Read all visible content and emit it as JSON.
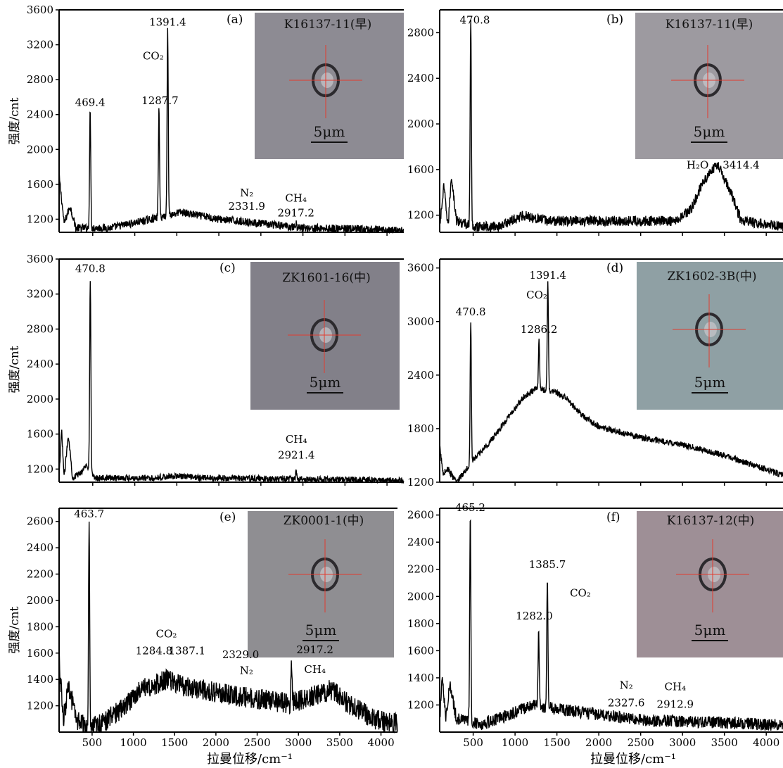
{
  "figure": {
    "ylabel": "强度/cnt",
    "xlabel": "拉曼位移/cm⁻¹",
    "scale_bar": "5μm"
  },
  "chart_data": [
    {
      "id": "a",
      "type": "line",
      "panel_label": "(a)",
      "sample": "K16137-11(早)",
      "xlim": [
        100,
        4200
      ],
      "ylim": [
        1050,
        3600
      ],
      "yticks": [
        1200,
        1600,
        2000,
        2400,
        2800,
        3200,
        3600
      ],
      "xticks": [],
      "xticklabels": [],
      "peaks": [
        [
          469.4,
          2430
        ],
        [
          1287.7,
          2450
        ],
        [
          1391.4,
          3350
        ],
        [
          2331.9,
          1180
        ],
        [
          2917.2,
          1150
        ]
      ],
      "baseline": [
        [
          100,
          1700
        ],
        [
          160,
          1150
        ],
        [
          230,
          1350
        ],
        [
          300,
          1100
        ],
        [
          700,
          1100
        ],
        [
          1100,
          1180
        ],
        [
          1550,
          1280
        ],
        [
          2000,
          1200
        ],
        [
          2500,
          1150
        ],
        [
          3000,
          1100
        ],
        [
          3500,
          1090
        ],
        [
          4200,
          1070
        ]
      ],
      "noise": 45,
      "annotations": [
        {
          "text": "469.4",
          "x": 469.4,
          "y": 2500
        },
        {
          "text": "1287.7",
          "x": 1300,
          "y": 2520
        },
        {
          "text": "1391.4",
          "x": 1391.4,
          "y": 3420
        },
        {
          "text": "CO₂",
          "x": 1220,
          "y": 3030
        },
        {
          "text": "N₂",
          "x": 2331.9,
          "y": 1460
        },
        {
          "text": "2331.9",
          "x": 2331.9,
          "y": 1310
        },
        {
          "text": "CH₄",
          "x": 2917.2,
          "y": 1400
        },
        {
          "text": "2917.2",
          "x": 2917.2,
          "y": 1230
        }
      ]
    },
    {
      "id": "b",
      "type": "line",
      "panel_label": "(b)",
      "sample": "K16137-11(早)",
      "xlim": [
        100,
        4200
      ],
      "ylim": [
        1050,
        3000
      ],
      "yticks": [
        1200,
        1600,
        2000,
        2400,
        2800
      ],
      "xticks": [],
      "xticklabels": [],
      "peaks": [
        [
          470.8,
          2900
        ]
      ],
      "baseline": [
        [
          100,
          1100
        ],
        [
          150,
          1450
        ],
        [
          200,
          1100
        ],
        [
          240,
          1550
        ],
        [
          300,
          1150
        ],
        [
          500,
          1100
        ],
        [
          800,
          1100
        ],
        [
          1100,
          1200
        ],
        [
          1400,
          1150
        ],
        [
          2000,
          1150
        ],
        [
          2900,
          1150
        ],
        [
          3100,
          1250
        ],
        [
          3250,
          1500
        ],
        [
          3414.4,
          1650
        ],
        [
          3550,
          1450
        ],
        [
          3700,
          1150
        ],
        [
          4200,
          1100
        ]
      ],
      "noise": 45,
      "annotations": [
        {
          "text": "470.8",
          "x": 520,
          "y": 2880
        },
        {
          "text": "H₂O",
          "x": 3180,
          "y": 1610
        },
        {
          "text": "3414.4",
          "x": 3700,
          "y": 1610
        }
      ]
    },
    {
      "id": "c",
      "type": "line",
      "panel_label": "(c)",
      "sample": "ZK1601-16(中)",
      "xlim": [
        100,
        4200
      ],
      "ylim": [
        1050,
        3600
      ],
      "yticks": [
        1200,
        1600,
        2000,
        2400,
        2800,
        3200,
        3600
      ],
      "xticks": [],
      "xticklabels": [],
      "peaks": [
        [
          470.8,
          3350
        ],
        [
          2921.4,
          1180
        ]
      ],
      "baseline": [
        [
          100,
          1100
        ],
        [
          130,
          1650
        ],
        [
          160,
          1100
        ],
        [
          210,
          1600
        ],
        [
          260,
          1100
        ],
        [
          350,
          1150
        ],
        [
          430,
          1250
        ],
        [
          520,
          1100
        ],
        [
          800,
          1100
        ],
        [
          1200,
          1100
        ],
        [
          1500,
          1120
        ],
        [
          1800,
          1100
        ],
        [
          2500,
          1090
        ],
        [
          3500,
          1080
        ],
        [
          4200,
          1070
        ]
      ],
      "noise": 35,
      "annotations": [
        {
          "text": "470.8",
          "x": 470.8,
          "y": 3450
        },
        {
          "text": "CH₄",
          "x": 2921.4,
          "y": 1500
        },
        {
          "text": "2921.4",
          "x": 2921.4,
          "y": 1320
        }
      ]
    },
    {
      "id": "d",
      "type": "line",
      "panel_label": "(d)",
      "sample": "ZK1602-3B(中)",
      "xlim": [
        100,
        4200
      ],
      "ylim": [
        1200,
        3700
      ],
      "yticks": [
        1200,
        1800,
        2400,
        3000,
        3600
      ],
      "xticks": [],
      "xticklabels": [],
      "peaks": [
        [
          470.8,
          3000
        ],
        [
          1286.2,
          2800
        ],
        [
          1391.4,
          3420
        ]
      ],
      "baseline": [
        [
          100,
          1600
        ],
        [
          140,
          1300
        ],
        [
          200,
          1350
        ],
        [
          260,
          1250
        ],
        [
          300,
          1200
        ],
        [
          500,
          1450
        ],
        [
          700,
          1650
        ],
        [
          900,
          1900
        ],
        [
          1100,
          2150
        ],
        [
          1250,
          2250
        ],
        [
          1450,
          2220
        ],
        [
          1600,
          2150
        ],
        [
          1800,
          1950
        ],
        [
          2000,
          1820
        ],
        [
          2500,
          1700
        ],
        [
          3000,
          1620
        ],
        [
          3500,
          1500
        ],
        [
          4200,
          1280
        ]
      ],
      "noise": 35,
      "annotations": [
        {
          "text": "470.8",
          "x": 470.8,
          "y": 3070
        },
        {
          "text": "1286.2",
          "x": 1286.2,
          "y": 2870
        },
        {
          "text": "1391.4",
          "x": 1391.4,
          "y": 3480
        },
        {
          "text": "CO₂",
          "x": 1260,
          "y": 3260
        }
      ]
    },
    {
      "id": "e",
      "type": "line",
      "panel_label": "(e)",
      "sample": "ZK0001-1(中)",
      "xlim": [
        100,
        4200
      ],
      "ylim": [
        1000,
        2700
      ],
      "yticks": [
        1200,
        1400,
        1600,
        1800,
        2000,
        2200,
        2400,
        2600
      ],
      "xticks": [
        500,
        1000,
        1500,
        2000,
        2500,
        3000,
        3500,
        4000
      ],
      "xticklabels": [
        "500",
        "1000",
        "1500",
        "2000",
        "2500",
        "3000",
        "3500",
        "4000"
      ],
      "peaks": [
        [
          463.7,
          2600
        ],
        [
          2917.2,
          1500
        ]
      ],
      "baseline": [
        [
          100,
          1550
        ],
        [
          150,
          1100
        ],
        [
          220,
          1350
        ],
        [
          300,
          1100
        ],
        [
          400,
          1050
        ],
        [
          600,
          1060
        ],
        [
          800,
          1150
        ],
        [
          1100,
          1320
        ],
        [
          1400,
          1400
        ],
        [
          1600,
          1350
        ],
        [
          2000,
          1300
        ],
        [
          2500,
          1250
        ],
        [
          2900,
          1220
        ],
        [
          3100,
          1260
        ],
        [
          3400,
          1320
        ],
        [
          3600,
          1220
        ],
        [
          3900,
          1100
        ],
        [
          4200,
          1060
        ]
      ],
      "noise": 80,
      "annotations": [
        {
          "text": "463.7",
          "x": 463.7,
          "y": 2630
        },
        {
          "text": "CO₂",
          "x": 1400,
          "y": 1720
        },
        {
          "text": "1284.8",
          "x": 1250,
          "y": 1590
        },
        {
          "text": "1387.1",
          "x": 1650,
          "y": 1590
        },
        {
          "text": "2329.0",
          "x": 2300,
          "y": 1560
        },
        {
          "text": "N₂",
          "x": 2370,
          "y": 1440
        },
        {
          "text": "2917.2",
          "x": 3200,
          "y": 1600
        },
        {
          "text": "CH₄",
          "x": 3200,
          "y": 1450
        }
      ]
    },
    {
      "id": "f",
      "type": "line",
      "panel_label": "(f)",
      "sample": "K16137-12(中)",
      "xlim": [
        100,
        4200
      ],
      "ylim": [
        1000,
        2650
      ],
      "yticks": [
        1200,
        1400,
        1600,
        1800,
        2000,
        2200,
        2400,
        2600
      ],
      "xticks": [
        500,
        1000,
        1500,
        2000,
        2500,
        3000,
        3500,
        4000
      ],
      "xticklabels": [
        "500",
        "1000",
        "1500",
        "2000",
        "2500",
        "3000",
        "3500",
        "4000"
      ],
      "peaks": [
        [
          465.2,
          2600
        ],
        [
          1282.0,
          1750
        ],
        [
          1385.7,
          2150
        ]
      ],
      "baseline": [
        [
          100,
          1050
        ],
        [
          130,
          1450
        ],
        [
          170,
          1100
        ],
        [
          220,
          1350
        ],
        [
          300,
          1100
        ],
        [
          600,
          1060
        ],
        [
          900,
          1120
        ],
        [
          1200,
          1200
        ],
        [
          1500,
          1170
        ],
        [
          2000,
          1130
        ],
        [
          2500,
          1090
        ],
        [
          3000,
          1080
        ],
        [
          3500,
          1070
        ],
        [
          4200,
          1050
        ]
      ],
      "noise": 45,
      "annotations": [
        {
          "text": "465.2",
          "x": 465.2,
          "y": 2630
        },
        {
          "text": "1385.7",
          "x": 1385.7,
          "y": 2210
        },
        {
          "text": "CO₂",
          "x": 1780,
          "y": 2000
        },
        {
          "text": "1282.0",
          "x": 1230,
          "y": 1830
        },
        {
          "text": "N₂",
          "x": 2327.6,
          "y": 1320
        },
        {
          "text": "2327.6",
          "x": 2327.6,
          "y": 1190
        },
        {
          "text": "CH₄",
          "x": 2912.9,
          "y": 1310
        },
        {
          "text": "2912.9",
          "x": 2912.9,
          "y": 1180
        }
      ]
    }
  ]
}
